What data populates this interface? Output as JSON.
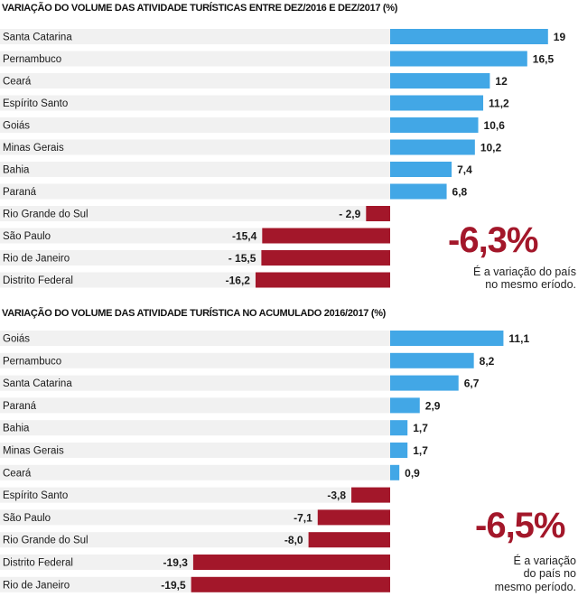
{
  "colors": {
    "positive": "#42a7e6",
    "negative": "#a3172a",
    "band": "#f1f1f1"
  },
  "chart_data": [
    {
      "type": "bar",
      "orientation": "horizontal",
      "title": "VARIAÇÃO DO VOLUME  DAS ATIVIDADE TURÍSTICAS ENTRE DEZ/2016 E DEZ/2017 (%)",
      "categories": [
        "Santa Catarina",
        "Pernambuco",
        "Ceará",
        "Espírito Santo",
        "Goiás",
        "Minas Gerais",
        "Bahia",
        "Paraná",
        "Rio Grande do Sul",
        "São Paulo",
        "Rio de Janeiro",
        "Distrito Federal"
      ],
      "values": [
        19,
        16.5,
        12,
        11.2,
        10.6,
        10.2,
        7.4,
        6.8,
        -2.9,
        -15.4,
        -15.5,
        -16.2
      ],
      "value_labels": [
        "19",
        "16,5",
        "12",
        "11,2",
        "10,6",
        "10,2",
        "7,4",
        "6,8",
        "- 2,9",
        "-15,4",
        "- 15,5",
        "-16,2"
      ],
      "callout": {
        "value": "-6,3%",
        "note": "É a variação do país\nno mesmo eríodo."
      }
    },
    {
      "type": "bar",
      "orientation": "horizontal",
      "title": "VARIAÇÃO DO VOLUME DAS ATIVIDADE TURÍSTICA NO ACUMULADO 2016/2017 (%)",
      "categories": [
        "Goiás",
        "Pernambuco",
        "Santa Catarina",
        "Paraná",
        "Bahia",
        "Minas Gerais",
        "Ceará",
        "Espírito Santo",
        "São Paulo",
        "Rio Grande do Sul",
        "Distrito Federal",
        "Rio de Janeiro"
      ],
      "values": [
        11.1,
        8.2,
        6.7,
        2.9,
        1.7,
        1.7,
        0.9,
        -3.8,
        -7.1,
        -8.0,
        -19.3,
        -19.5
      ],
      "value_labels": [
        "11,1",
        "8,2",
        "6,7",
        "2,9",
        "1,7",
        "1,7",
        "0,9",
        "-3,8",
        "-7,1",
        "-8,0",
        "-19,3",
        "-19,5"
      ],
      "callout": {
        "value": "-6,5%",
        "note": "É a variação\ndo país no\nmesmo período."
      }
    }
  ]
}
